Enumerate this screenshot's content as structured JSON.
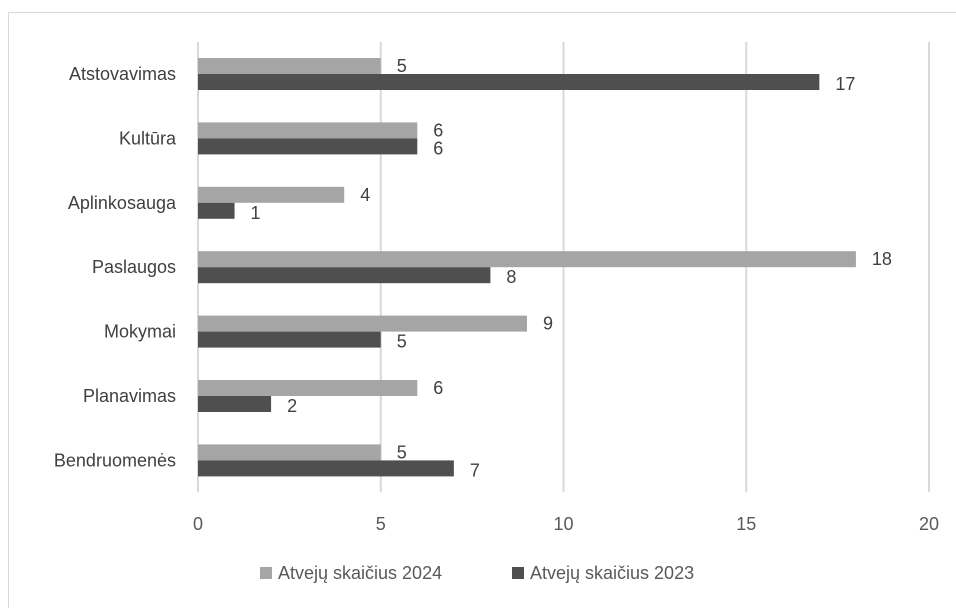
{
  "chart_data": {
    "type": "bar",
    "orientation": "horizontal",
    "categories": [
      "Atstovavimas",
      "Kultūra",
      "Aplinkosauga",
      "Paslaugos",
      "Mokymai",
      "Planavimas",
      "Bendruomenės"
    ],
    "series": [
      {
        "name": "Atvejų skaičius 2024",
        "color": "#a5a5a5",
        "values": [
          5,
          6,
          4,
          18,
          9,
          6,
          5
        ]
      },
      {
        "name": "Atvejų skaičius 2023",
        "color": "#4f4f4f",
        "values": [
          17,
          6,
          1,
          8,
          5,
          2,
          7
        ]
      }
    ],
    "xlim": [
      0,
      20
    ],
    "xticks": [
      "0",
      "5",
      "10",
      "15",
      "20"
    ],
    "grid": "vertical",
    "legend": "bottom",
    "data_labels": true
  }
}
